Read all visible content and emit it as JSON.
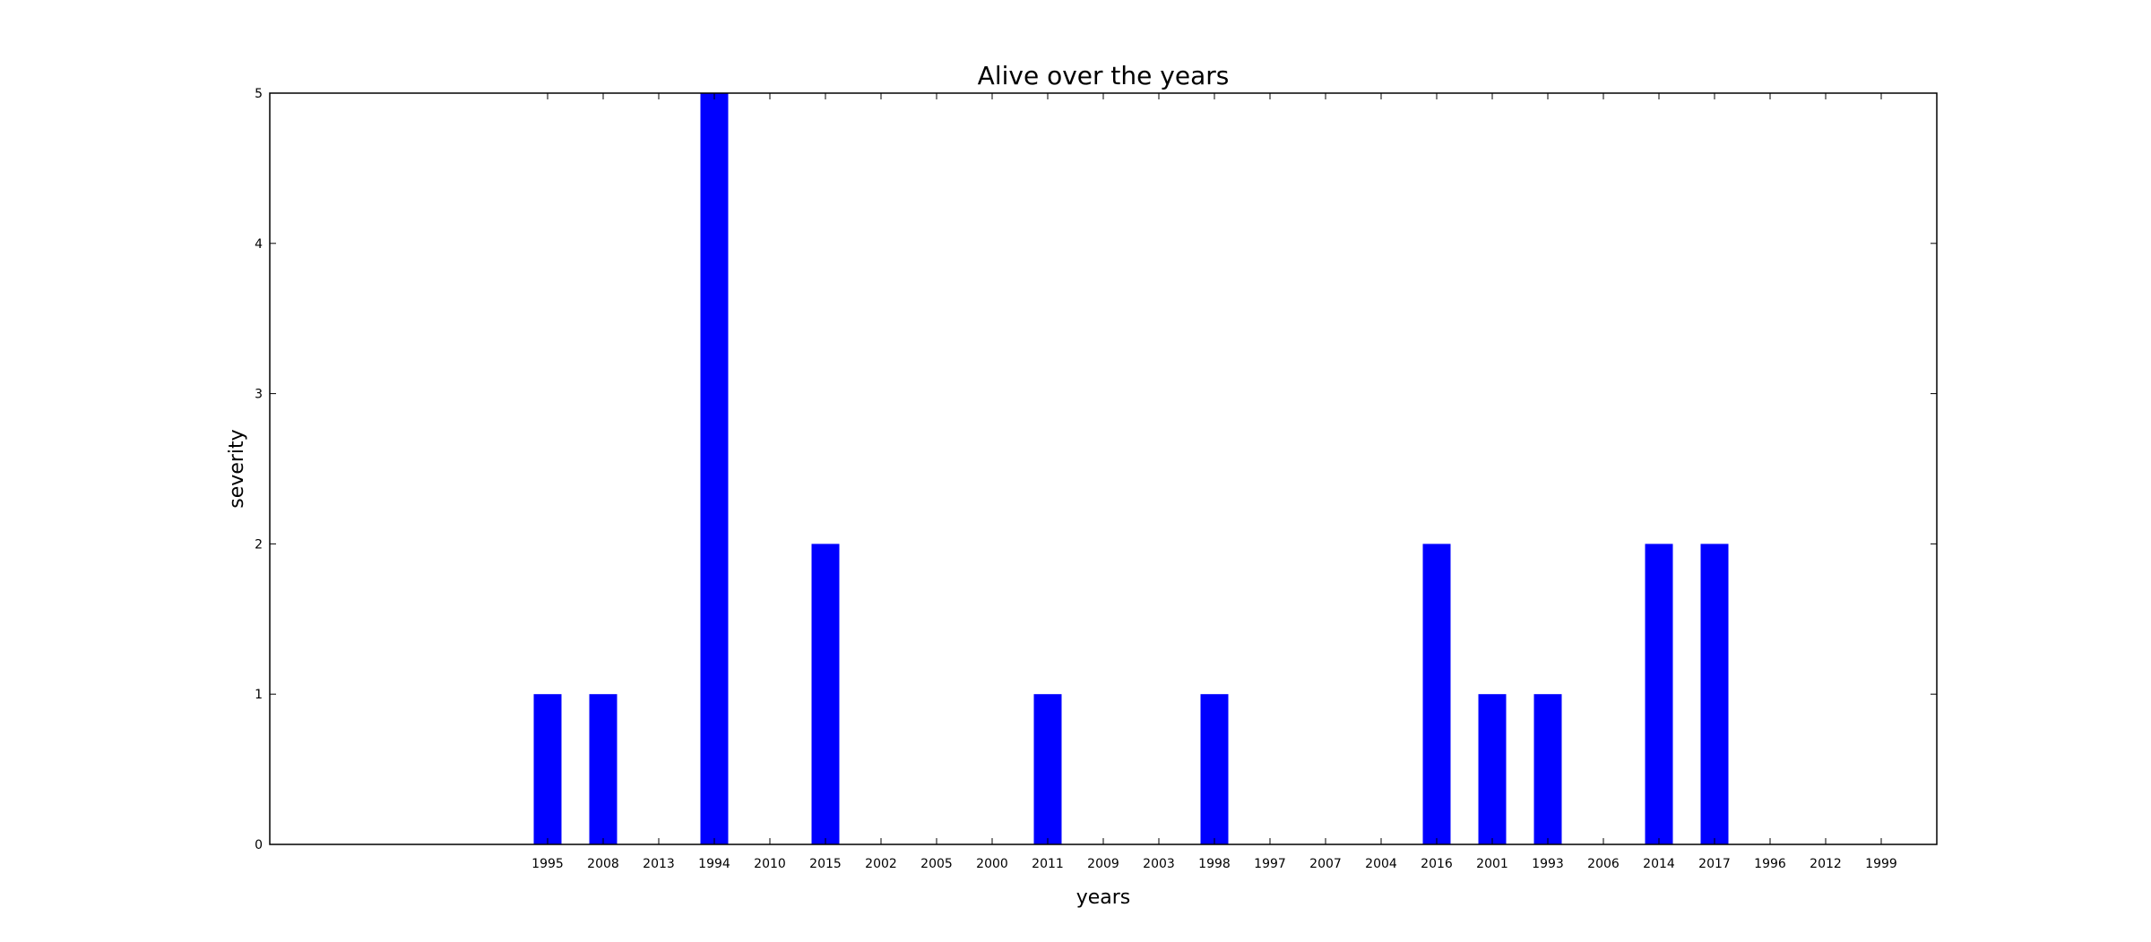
{
  "chart_data": {
    "type": "bar",
    "title": "Alive over the years",
    "xlabel": "years",
    "ylabel": "severity",
    "categories": [
      "1995",
      "2008",
      "2013",
      "1994",
      "2010",
      "2015",
      "2002",
      "2005",
      "2000",
      "2011",
      "2009",
      "2003",
      "1998",
      "1997",
      "2007",
      "2004",
      "2016",
      "2001",
      "1993",
      "2006",
      "2014",
      "2017",
      "1996",
      "2012",
      "1999"
    ],
    "values": [
      1,
      1,
      0,
      5,
      0,
      2,
      0,
      0,
      0,
      1,
      0,
      0,
      1,
      0,
      0,
      0,
      2,
      1,
      1,
      0,
      2,
      2,
      0,
      0,
      0
    ],
    "ylim": [
      0,
      5
    ],
    "yticks": [
      0,
      1,
      2,
      3,
      4,
      5
    ],
    "xlim": [
      -5,
      25
    ],
    "grid": false,
    "bar_color": "#0000ff"
  }
}
